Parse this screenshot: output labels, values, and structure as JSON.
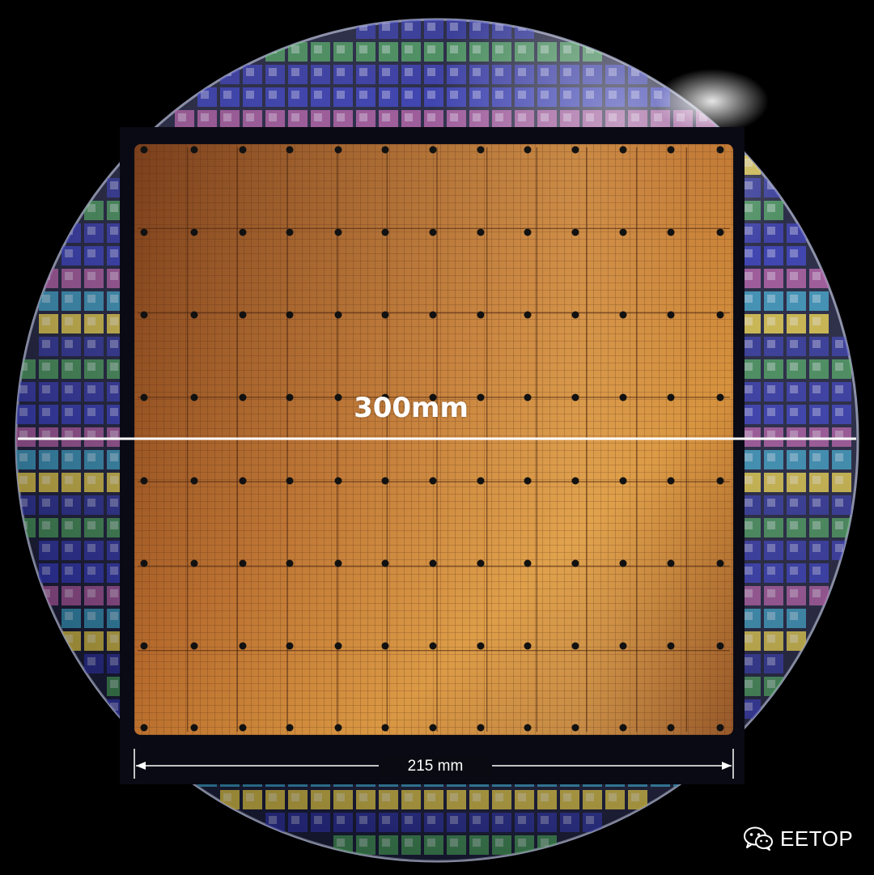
{
  "wafer": {
    "diameter_label": "300mm",
    "colors": {
      "background": "#000000",
      "wafer_edge": "#7a7f9a",
      "die_blue": "#3a3fd8",
      "die_cyan": "#3aa0c8",
      "die_green": "#5ad06a",
      "die_yellow": "#e0c84a",
      "die_pink": "#c060b0"
    }
  },
  "chip": {
    "width_label": "215 mm",
    "colors": {
      "frame": "#0a0a14",
      "surface_dark": "#7a3f1c",
      "surface_mid": "#b66a2c",
      "surface_light": "#e0a23e",
      "grid_line": "#4a2410",
      "hole": "#111111"
    }
  },
  "watermark": {
    "icon": "wechat-icon",
    "text": "EETOP"
  }
}
